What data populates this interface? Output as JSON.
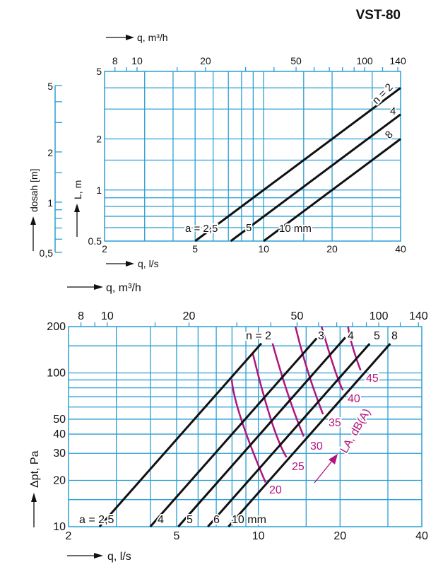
{
  "title": "VST-80",
  "colors": {
    "grid": "#2a9fd6",
    "curve": "#b0157e",
    "line": "#111111"
  },
  "chart_data": [
    {
      "type": "line",
      "name": "throw-chart",
      "x_axis": {
        "label": "q, l/s",
        "scale": "log",
        "range": [
          2,
          40
        ],
        "ticks": [
          2,
          5,
          10,
          20,
          40
        ],
        "grid": [
          3,
          4,
          5,
          6,
          7,
          8,
          9,
          10,
          15,
          20,
          30
        ]
      },
      "x2_axis": {
        "label": "q, m³/h",
        "ticks": [
          8,
          10,
          20,
          50,
          100,
          140
        ],
        "minor": [
          9,
          15,
          30,
          40,
          60,
          70,
          80,
          90,
          120
        ]
      },
      "y_axis": {
        "label": "L, m",
        "scale": "log",
        "range": [
          0.5,
          5
        ],
        "ticks": [
          "0.5",
          "1",
          "2",
          "5"
        ],
        "grid": [
          0.6,
          0.7,
          0.8,
          0.9,
          1,
          1.5,
          2,
          3,
          4
        ]
      },
      "y2_axis": {
        "label": "dosah [m]",
        "ticks": [
          "0,5",
          "1",
          "2",
          "5"
        ],
        "minor": [
          0.6,
          0.7,
          0.8,
          0.9,
          1.5,
          3,
          4
        ]
      },
      "series": [
        {
          "name": "n = 2",
          "points": [
            [
              5,
              0.5
            ],
            [
              40,
              4.0
            ]
          ]
        },
        {
          "name": "4",
          "points": [
            [
              7.17,
              0.5
            ],
            [
              40,
              2.79
            ]
          ]
        },
        {
          "name": "8",
          "points": [
            [
              10,
              0.5
            ],
            [
              40,
              2.0
            ]
          ]
        }
      ],
      "annotations": [
        "a = 2,5",
        "5",
        "10 mm"
      ]
    },
    {
      "type": "line",
      "name": "pressure-chart",
      "x_axis": {
        "label": "q, l/s",
        "scale": "log",
        "range": [
          2,
          40
        ],
        "ticks": [
          2,
          5,
          10,
          20,
          40
        ],
        "grid": [
          3,
          4,
          5,
          6,
          7,
          8,
          9,
          10,
          15,
          20,
          30
        ]
      },
      "x2_axis": {
        "label": "q, m³/h",
        "ticks": [
          8,
          10,
          20,
          50,
          100,
          140
        ],
        "minor": [
          9,
          15,
          30,
          40,
          60,
          70,
          80,
          90,
          120
        ]
      },
      "y_axis": {
        "label": "Δpt, Pa",
        "scale": "log",
        "range": [
          10,
          200
        ],
        "ticks": [
          10,
          20,
          30,
          40,
          50,
          100,
          200
        ],
        "grid": [
          15,
          20,
          30,
          40,
          50,
          60,
          70,
          80,
          90,
          100,
          150
        ]
      },
      "series": [
        {
          "name": "n = 2",
          "points": [
            [
              2.6,
              10
            ],
            [
              10.26,
              155.7
            ]
          ]
        },
        {
          "name": "3",
          "points": [
            [
              4.0,
              10
            ],
            [
              16.4,
              168
            ]
          ]
        },
        {
          "name": "4",
          "points": [
            [
              5.07,
              10
            ],
            [
              20.9,
              170
            ]
          ]
        },
        {
          "name": "5",
          "points": [
            [
              6.52,
              10
            ],
            [
              25.7,
              155
            ]
          ]
        },
        {
          "name": "8",
          "points": [
            [
              7.76,
              10
            ],
            [
              30.6,
              155
            ]
          ]
        }
      ],
      "annotations": [
        "a = 2,5",
        "4",
        "5",
        "6",
        "10 mm"
      ],
      "sound_curves": {
        "label": "LA, dB(A)",
        "curves": [
          {
            "name": "20",
            "points": [
              [
                7.98,
                90.6
              ],
              [
                8.67,
                49.3
              ],
              [
                10.63,
                19.4
              ]
            ]
          },
          {
            "name": "25",
            "points": [
              [
                9.55,
                133
              ],
              [
                11.15,
                49.3
              ],
              [
                12.7,
                28.3
              ]
            ]
          },
          {
            "name": "30",
            "points": [
              [
                11.28,
                155.7
              ],
              [
                12.86,
                72.6
              ],
              [
                14.7,
                38.6
              ]
            ]
          },
          {
            "name": "35",
            "points": [
              [
                13.7,
                200
              ],
              [
                15.2,
                103
              ],
              [
                17.3,
                53.9
              ]
            ]
          },
          {
            "name": "40",
            "points": [
              [
                17.1,
                200
              ],
              [
                19.05,
                107
              ],
              [
                20.5,
                77.1
              ]
            ]
          },
          {
            "name": "45",
            "points": [
              [
                21.4,
                200
              ],
              [
                22.2,
                150
              ],
              [
                23.8,
                104
              ]
            ]
          }
        ]
      }
    }
  ]
}
